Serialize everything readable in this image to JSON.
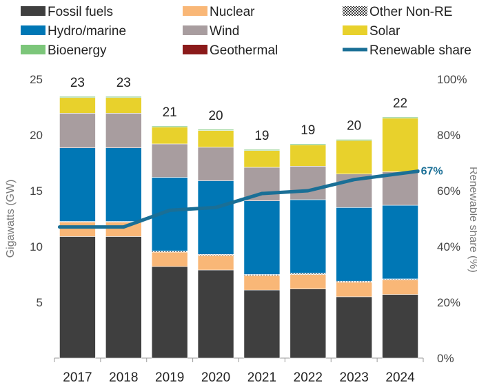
{
  "chart_data": {
    "type": "bar",
    "stacked": true,
    "categories": [
      "2017",
      "2018",
      "2019",
      "2020",
      "2021",
      "2022",
      "2023",
      "2024"
    ],
    "series": [
      {
        "name": "Fossil fuels",
        "color": "#3f3f3f",
        "values": [
          10.9,
          10.9,
          8.2,
          7.9,
          6.1,
          6.2,
          5.5,
          5.7
        ]
      },
      {
        "name": "Nuclear",
        "color": "#f9b777",
        "values": [
          1.3,
          1.3,
          1.3,
          1.3,
          1.3,
          1.3,
          1.3,
          1.3
        ]
      },
      {
        "name": "Other Non-RE",
        "color": "#bdbdbd",
        "pattern": "dotted",
        "values": [
          0.05,
          0.05,
          0.1,
          0.1,
          0.1,
          0.1,
          0.1,
          0.1
        ]
      },
      {
        "name": "Hydro/marine",
        "color": "#0077b5",
        "values": [
          6.6,
          6.6,
          6.6,
          6.6,
          6.6,
          6.6,
          6.6,
          6.6
        ]
      },
      {
        "name": "Wind",
        "color": "#a89d9f",
        "values": [
          3.1,
          3.1,
          3.0,
          3.0,
          3.0,
          3.0,
          3.0,
          3.0
        ]
      },
      {
        "name": "Solar",
        "color": "#e8d12c",
        "values": [
          1.4,
          1.4,
          1.5,
          1.5,
          1.5,
          1.9,
          3.0,
          4.8
        ]
      },
      {
        "name": "Bioenergy",
        "color": "#7cc67a",
        "values": [
          0.1,
          0.1,
          0.1,
          0.1,
          0.1,
          0.1,
          0.1,
          0.1
        ]
      },
      {
        "name": "Geothermal",
        "color": "#8b1a1a",
        "values": [
          0,
          0,
          0,
          0,
          0,
          0,
          0,
          0
        ]
      }
    ],
    "totals": [
      "23",
      "23",
      "21",
      "20",
      "19",
      "19",
      "20",
      "22"
    ],
    "line": {
      "name": "Renewable share",
      "color": "#1a6f96",
      "axis": "right",
      "values": [
        47,
        47,
        53,
        54,
        59,
        60,
        64,
        67
      ]
    },
    "line_end_label": "67%",
    "ylabel": "Gigawatts (GW)",
    "ylabel_right": "Renewable share (%)",
    "ylim": [
      0,
      25
    ],
    "yticks": [
      "5",
      "10",
      "15",
      "20",
      "25"
    ],
    "ylim_right": [
      0,
      100
    ],
    "yticks_right": [
      "0%",
      "20%",
      "40%",
      "60%",
      "80%",
      "100%"
    ],
    "legend_position": "top",
    "grid": false
  }
}
